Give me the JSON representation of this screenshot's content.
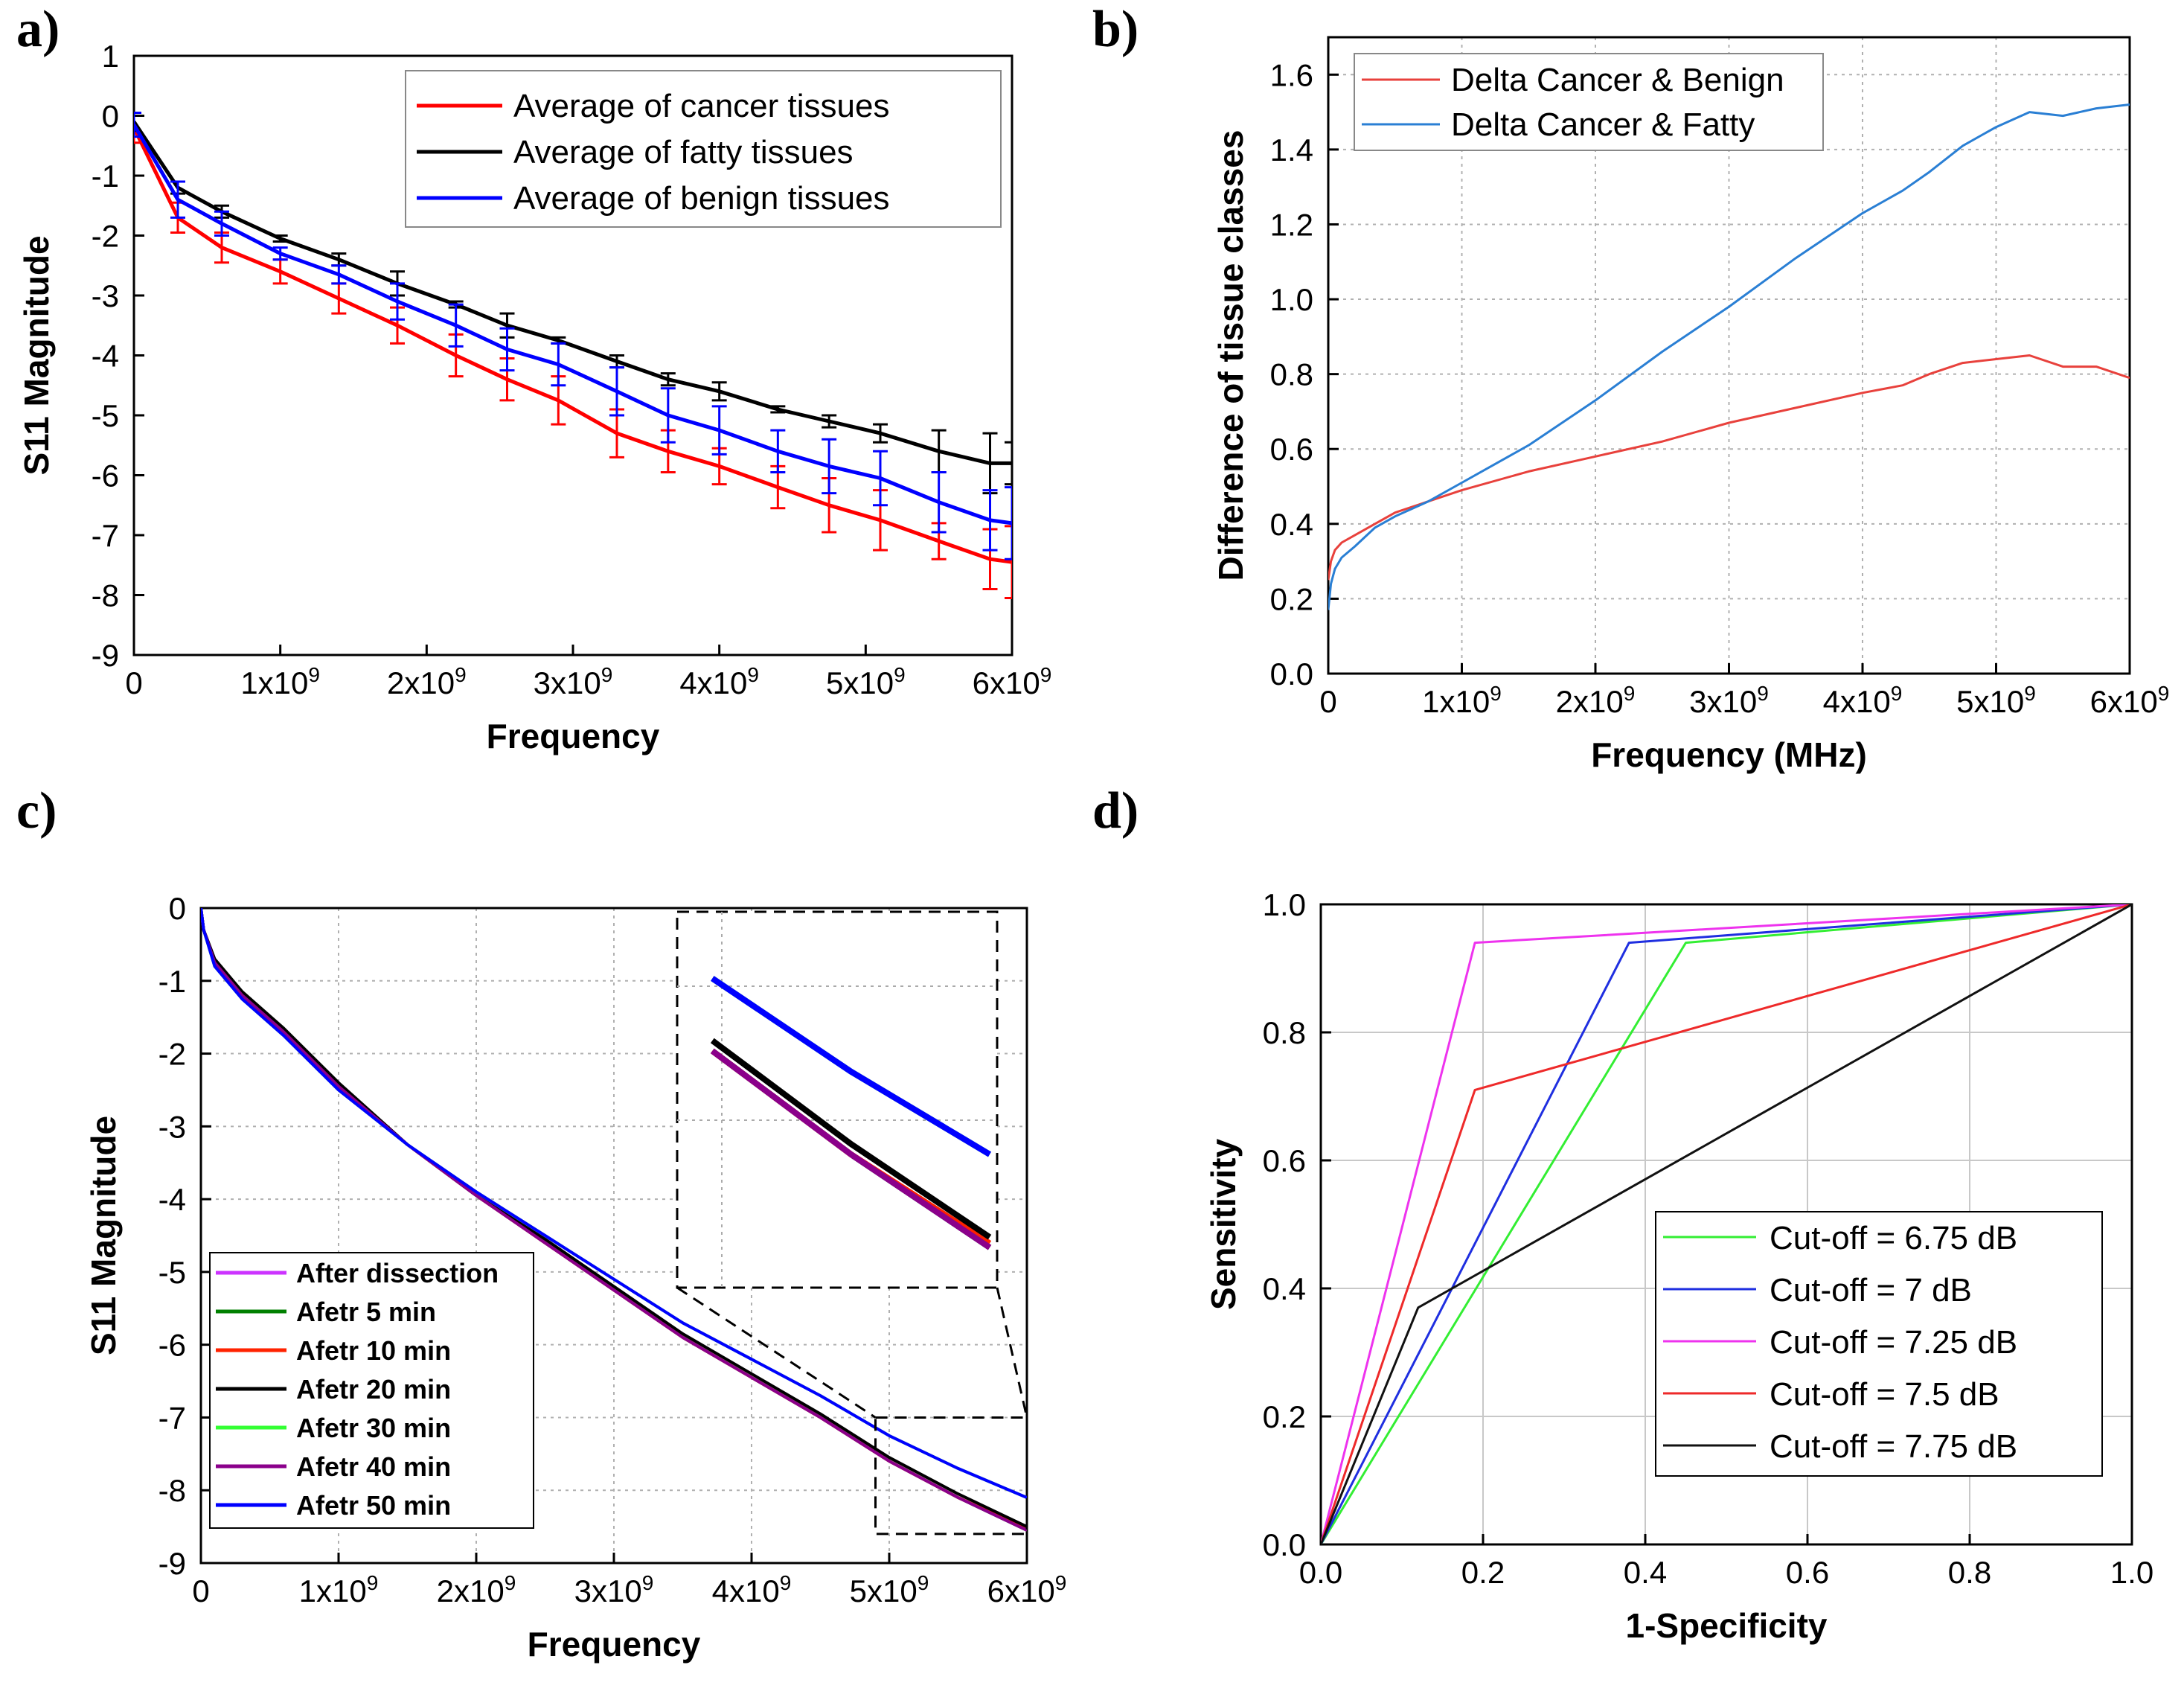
{
  "chart_data": [
    {
      "id": "a",
      "panel_label": "a)",
      "type": "line",
      "xlabel": "Frequency",
      "ylabel": "S11 Magnitude",
      "xlim": [
        0,
        6000000000
      ],
      "ylim": [
        -9,
        1
      ],
      "xticks": [
        0,
        1000000000,
        2000000000,
        3000000000,
        4000000000,
        5000000000,
        6000000000
      ],
      "xtick_labels": [
        "0",
        "1x10^9",
        "2x10^9",
        "3x10^9",
        "4x10^9",
        "5x10^9",
        "6x10^9"
      ],
      "yticks": [
        1,
        0,
        -1,
        -2,
        -3,
        -4,
        -5,
        -6,
        -7,
        -8,
        -9
      ],
      "ytick_labels": [
        "1",
        "0",
        "-1",
        "-2",
        "-3",
        "-4",
        "-5",
        "-6",
        "-7",
        "-8",
        "-9"
      ],
      "legend_position": "top-right",
      "x": [
        0,
        300000000,
        600000000,
        1000000000,
        1400000000,
        1800000000,
        2200000000,
        2550000000,
        2900000000,
        3300000000,
        3650000000,
        4000000000,
        4400000000,
        4750000000,
        5100000000,
        5500000000,
        5850000000,
        6000000000
      ],
      "series": [
        {
          "name": "Average of cancer tissues",
          "color": "#ff0000",
          "values": [
            -0.2,
            -1.7,
            -2.2,
            -2.6,
            -3.05,
            -3.5,
            -4.0,
            -4.4,
            -4.75,
            -5.3,
            -5.6,
            -5.85,
            -6.2,
            -6.5,
            -6.75,
            -7.1,
            -7.4,
            -7.45
          ],
          "errors": [
            0.25,
            0.25,
            0.25,
            0.2,
            0.25,
            0.3,
            0.35,
            0.35,
            0.4,
            0.4,
            0.35,
            0.3,
            0.35,
            0.45,
            0.5,
            0.3,
            0.5,
            0.6
          ]
        },
        {
          "name": "Average of fatty tissues",
          "color": "#000000",
          "values": [
            -0.1,
            -1.2,
            -1.6,
            -2.05,
            -2.4,
            -2.8,
            -3.15,
            -3.5,
            -3.75,
            -4.1,
            -4.4,
            -4.6,
            -4.9,
            -5.1,
            -5.3,
            -5.6,
            -5.8,
            -5.8
          ],
          "errors": [
            0.15,
            0.1,
            0.1,
            0.05,
            0.1,
            0.2,
            0.05,
            0.2,
            0.05,
            0.1,
            0.1,
            0.15,
            0.05,
            0.1,
            0.15,
            0.35,
            0.5,
            0.35
          ]
        },
        {
          "name": "Average of benign tissues",
          "color": "#0000ff",
          "values": [
            -0.15,
            -1.4,
            -1.8,
            -2.3,
            -2.65,
            -3.1,
            -3.5,
            -3.9,
            -4.15,
            -4.6,
            -5.0,
            -5.25,
            -5.6,
            -5.85,
            -6.05,
            -6.45,
            -6.75,
            -6.8
          ],
          "errors": [
            0.2,
            0.3,
            0.2,
            0.1,
            0.15,
            0.3,
            0.35,
            0.35,
            0.35,
            0.4,
            0.45,
            0.4,
            0.35,
            0.45,
            0.45,
            0.5,
            0.5,
            0.6
          ]
        }
      ]
    },
    {
      "id": "b",
      "panel_label": "b)",
      "type": "line",
      "xlabel": "Frequency (MHz)",
      "ylabel": "Difference of tissue classes",
      "xlim": [
        0,
        6000000000
      ],
      "ylim": [
        0,
        1.7
      ],
      "xticks": [
        0,
        1000000000,
        2000000000,
        3000000000,
        4000000000,
        5000000000,
        6000000000
      ],
      "xtick_labels": [
        "0",
        "1x10^9",
        "2x10^9",
        "3x10^9",
        "4x10^9",
        "5x10^9",
        "6x10^9"
      ],
      "yticks": [
        0.0,
        0.2,
        0.4,
        0.6,
        0.8,
        1.0,
        1.2,
        1.4,
        1.6
      ],
      "ytick_labels": [
        "0.0",
        "0.2",
        "0.4",
        "0.6",
        "0.8",
        "1.0",
        "1.2",
        "1.4",
        "1.6"
      ],
      "legend_position": "top-left",
      "x": [
        0,
        20000000,
        50000000,
        100000000,
        200000000,
        350000000,
        500000000,
        750000000,
        1000000000,
        1500000000,
        2000000000,
        2500000000,
        3000000000,
        3500000000,
        4000000000,
        4300000000,
        4500000000,
        4750000000,
        5000000000,
        5250000000,
        5500000000,
        5750000000,
        6000000000
      ],
      "series": [
        {
          "name": "Delta Cancer & Benign",
          "color": "#e8413c",
          "values": [
            0.25,
            0.3,
            0.33,
            0.35,
            0.37,
            0.4,
            0.43,
            0.46,
            0.49,
            0.54,
            0.58,
            0.62,
            0.67,
            0.71,
            0.75,
            0.77,
            0.8,
            0.83,
            0.84,
            0.85,
            0.82,
            0.82,
            0.79
          ]
        },
        {
          "name": "Delta Cancer & Fatty",
          "color": "#2a7fd4",
          "values": [
            0.17,
            0.24,
            0.28,
            0.31,
            0.34,
            0.39,
            0.42,
            0.46,
            0.51,
            0.61,
            0.73,
            0.86,
            0.98,
            1.11,
            1.23,
            1.29,
            1.34,
            1.41,
            1.46,
            1.5,
            1.49,
            1.51,
            1.52
          ]
        }
      ]
    },
    {
      "id": "c",
      "panel_label": "c)",
      "type": "line",
      "xlabel": "Frequency",
      "ylabel": "S11 Magnitude",
      "xlim": [
        0,
        6000000000
      ],
      "ylim": [
        -9,
        0
      ],
      "xticks": [
        0,
        1000000000,
        2000000000,
        3000000000,
        4000000000,
        5000000000,
        6000000000
      ],
      "xtick_labels": [
        "0",
        "1x10^9",
        "2x10^9",
        "3x10^9",
        "4x10^9",
        "5x10^9",
        "6x10^9"
      ],
      "yticks": [
        0,
        -1,
        -2,
        -3,
        -4,
        -5,
        -6,
        -7,
        -8,
        -9
      ],
      "ytick_labels": [
        "0",
        "-1",
        "-2",
        "-3",
        "-4",
        "-5",
        "-6",
        "-7",
        "-8",
        "-9"
      ],
      "legend_position": "bottom-left",
      "inset": "zoomed view of 4.9x10^9 to 6x10^9",
      "x": [
        0,
        20000000,
        100000000,
        300000000,
        600000000,
        1000000000,
        1500000000,
        2000000000,
        2500000000,
        3000000000,
        3500000000,
        4000000000,
        4500000000,
        5000000000,
        5500000000,
        6000000000
      ],
      "series": [
        {
          "name": "After dissection",
          "color": "#cc33ff",
          "values": [
            0,
            -0.3,
            -0.75,
            -1.2,
            -1.7,
            -2.45,
            -3.25,
            -3.95,
            -4.6,
            -5.25,
            -5.9,
            -6.45,
            -7.0,
            -7.6,
            -8.1,
            -8.55
          ]
        },
        {
          "name": "Afetr 5 min",
          "color": "#008000",
          "values": [
            0,
            -0.3,
            -0.75,
            -1.2,
            -1.7,
            -2.45,
            -3.25,
            -3.95,
            -4.6,
            -5.25,
            -5.9,
            -6.45,
            -7.0,
            -7.6,
            -8.1,
            -8.55
          ]
        },
        {
          "name": "Afetr 10 min",
          "color": "#ff2200",
          "values": [
            0,
            -0.3,
            -0.75,
            -1.2,
            -1.7,
            -2.45,
            -3.25,
            -3.95,
            -4.6,
            -5.25,
            -5.9,
            -6.45,
            -7.0,
            -7.6,
            -8.1,
            -8.53
          ]
        },
        {
          "name": "Afetr 20 min",
          "color": "#000000",
          "values": [
            0,
            -0.3,
            -0.7,
            -1.15,
            -1.65,
            -2.4,
            -3.25,
            -3.95,
            -4.55,
            -5.2,
            -5.85,
            -6.4,
            -6.95,
            -7.55,
            -8.05,
            -8.5
          ]
        },
        {
          "name": "Afetr 30 min",
          "color": "#33ff33",
          "values": [
            0,
            -0.3,
            -0.8,
            -1.25,
            -1.75,
            -2.5,
            -3.25,
            -3.9,
            -4.5,
            -5.1,
            -5.7,
            -6.2,
            -6.7,
            -7.25,
            -7.7,
            -8.1
          ]
        },
        {
          "name": "Afetr 40 min",
          "color": "#8b008b",
          "values": [
            0,
            -0.3,
            -0.75,
            -1.2,
            -1.7,
            -2.45,
            -3.25,
            -3.95,
            -4.6,
            -5.25,
            -5.9,
            -6.45,
            -7.0,
            -7.6,
            -8.1,
            -8.55
          ]
        },
        {
          "name": "Afetr 50 min",
          "color": "#0000ff",
          "values": [
            0,
            -0.3,
            -0.8,
            -1.25,
            -1.75,
            -2.5,
            -3.25,
            -3.9,
            -4.5,
            -5.1,
            -5.7,
            -6.2,
            -6.7,
            -7.25,
            -7.7,
            -8.1
          ]
        }
      ]
    },
    {
      "id": "d",
      "panel_label": "d)",
      "type": "line",
      "xlabel": "1-Specificity",
      "ylabel": "Sensitivity",
      "xlim": [
        0,
        1
      ],
      "ylim": [
        0,
        1
      ],
      "xticks": [
        0.0,
        0.2,
        0.4,
        0.6,
        0.8,
        1.0
      ],
      "xtick_labels": [
        "0.0",
        "0.2",
        "0.4",
        "0.6",
        "0.8",
        "1.0"
      ],
      "yticks": [
        0.0,
        0.2,
        0.4,
        0.6,
        0.8,
        1.0
      ],
      "ytick_labels": [
        "0.0",
        "0.2",
        "0.4",
        "0.6",
        "0.8",
        "1.0"
      ],
      "legend_position": "bottom-right",
      "series": [
        {
          "name": "Cut-off = 6.75 dB",
          "color": "#33ee33",
          "x": [
            0,
            0.45,
            1.0
          ],
          "values": [
            0,
            0.94,
            1.0
          ]
        },
        {
          "name": "Cut-off = 7 dB",
          "color": "#1f2fe0",
          "x": [
            0,
            0.38,
            1.0
          ],
          "values": [
            0,
            0.94,
            1.0
          ]
        },
        {
          "name": "Cut-off = 7.25 dB",
          "color": "#ee33ee",
          "x": [
            0,
            0.19,
            1.0
          ],
          "values": [
            0,
            0.94,
            1.0
          ]
        },
        {
          "name": "Cut-off = 7.5 dB",
          "color": "#ee2a2a",
          "x": [
            0,
            0.19,
            1.0
          ],
          "values": [
            0,
            0.71,
            1.0
          ]
        },
        {
          "name": "Cut-off = 7.75 dB",
          "color": "#111111",
          "x": [
            0,
            0.12,
            1.0
          ],
          "values": [
            0,
            0.37,
            1.0
          ]
        }
      ]
    }
  ]
}
